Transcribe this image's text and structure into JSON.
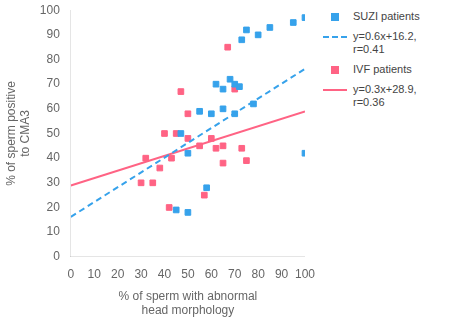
{
  "chart_data": {
    "type": "scatter",
    "xlabel": "% of sperm with abnormal\nhead morphology",
    "ylabel": "% of sperm positive\nto CMA3",
    "xlim": [
      0,
      100
    ],
    "ylim": [
      0,
      100
    ],
    "xticks": [
      0,
      10,
      20,
      30,
      40,
      50,
      60,
      70,
      80,
      90,
      100
    ],
    "yticks": [
      0,
      10,
      20,
      30,
      40,
      50,
      60,
      70,
      80,
      90,
      100
    ],
    "grid": false,
    "legend": "right",
    "series": [
      {
        "name": "SUZI patients",
        "type": "scatter",
        "marker": "square",
        "color": "#36a2eb",
        "x": [
          50,
          55,
          60,
          62,
          65,
          65,
          68,
          70,
          70,
          72,
          73,
          75,
          78,
          80,
          85,
          95,
          100,
          100,
          45,
          47,
          50,
          58
        ],
        "values": [
          18,
          59,
          58,
          70,
          60,
          68,
          72,
          58,
          70,
          69,
          88,
          92,
          62,
          90,
          93,
          95,
          97,
          42,
          19,
          50,
          42,
          28
        ]
      },
      {
        "name": "y=0.6x+16.2,\nr=0.41",
        "type": "line",
        "line_style": "dashed",
        "color": "#36a2eb",
        "x": [
          0,
          100
        ],
        "values": [
          16.2,
          76.2
        ]
      },
      {
        "name": "IVF patients",
        "type": "scatter",
        "marker": "square",
        "color": "#ff6384",
        "x": [
          30,
          32,
          35,
          38,
          40,
          42,
          43,
          45,
          47,
          50,
          50,
          55,
          57,
          60,
          62,
          65,
          65,
          67,
          70,
          73,
          75
        ],
        "values": [
          30,
          40,
          30,
          36,
          50,
          20,
          40,
          50,
          67,
          48,
          58,
          45,
          25,
          48,
          44,
          45,
          38,
          85,
          68,
          44,
          39
        ]
      },
      {
        "name": "y=0.3x+28.9,\nr=0.36",
        "type": "line",
        "line_style": "solid",
        "color": "#ff6384",
        "x": [
          0,
          100
        ],
        "values": [
          28.9,
          58.9
        ]
      }
    ]
  }
}
